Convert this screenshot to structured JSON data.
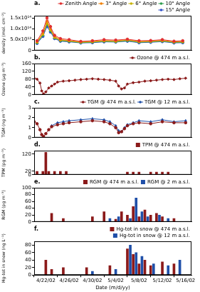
{
  "chart_data": [
    {
      "type": "line",
      "title": "a.",
      "y_label": "density (mol. cm⁻²)",
      "grid": false,
      "legend": "top-right",
      "tick_labels": "y",
      "xlim": [
        110,
        137
      ],
      "ylim": [
        0,
        160000000000000.0
      ],
      "yticks": [
        0,
        {
          "value": 50000000000000.0,
          "label": "5.0x10¹³"
        },
        {
          "value": 100000000000000.0,
          "label": "1.0x10¹⁴"
        },
        {
          "value": 150000000000000.0,
          "label": "1.5x10¹⁴"
        }
      ],
      "series": [
        {
          "name": "Zenith Angle",
          "color": "#e03030",
          "marker": "circle",
          "x": [
            110.5,
            111.5,
            112.2,
            112.8,
            113.5,
            114.5,
            116,
            118,
            120,
            122,
            124,
            126,
            128,
            130,
            132,
            134,
            135.5
          ],
          "values": [
            45000000000000.0,
            90000000000000.0,
            150000000000000.0,
            110000000000000.0,
            70000000000000.0,
            55000000000000.0,
            50000000000000.0,
            42000000000000.0,
            45000000000000.0,
            50000000000000.0,
            48000000000000.0,
            52000000000000.0,
            45000000000000.0,
            46000000000000.0,
            50000000000000.0,
            43000000000000.0,
            45000000000000.0
          ]
        },
        {
          "name": "3° Angle",
          "color": "#f08000",
          "marker": "triangle",
          "x": [
            110.5,
            111.5,
            112.2,
            112.8,
            113.5,
            114.5,
            116,
            118,
            120,
            122,
            124,
            126,
            128,
            130,
            132,
            134,
            135.5
          ],
          "values": [
            40000000000000.0,
            80000000000000.0,
            135000000000000.0,
            100000000000000.0,
            65000000000000.0,
            50000000000000.0,
            46000000000000.0,
            40000000000000.0,
            42000000000000.0,
            46000000000000.0,
            45000000000000.0,
            50000000000000.0,
            42000000000000.0,
            44000000000000.0,
            47000000000000.0,
            40000000000000.0,
            42000000000000.0
          ]
        },
        {
          "name": "6° Angle",
          "color": "#c8b400",
          "marker": "square",
          "x": [
            110.5,
            111.5,
            112.2,
            112.8,
            113.5,
            114.5,
            116,
            118,
            120,
            122,
            124,
            126,
            128,
            130,
            132,
            134,
            135.5
          ],
          "values": [
            38000000000000.0,
            75000000000000.0,
            125000000000000.0,
            95000000000000.0,
            60000000000000.0,
            48000000000000.0,
            44000000000000.0,
            38000000000000.0,
            40000000000000.0,
            44000000000000.0,
            42000000000000.0,
            48000000000000.0,
            40000000000000.0,
            42000000000000.0,
            45000000000000.0,
            39000000000000.0,
            40000000000000.0
          ]
        },
        {
          "name": "10° Angle",
          "color": "#2e9e4e",
          "marker": "diamond",
          "x": [
            110.5,
            111.5,
            112.2,
            112.8,
            113.5,
            114.5,
            116,
            118,
            120,
            122,
            124,
            126,
            128,
            130,
            132,
            134,
            135.5
          ],
          "values": [
            35000000000000.0,
            70000000000000.0,
            120000000000000.0,
            90000000000000.0,
            58000000000000.0,
            45000000000000.0,
            42000000000000.0,
            36000000000000.0,
            38000000000000.0,
            42000000000000.0,
            40000000000000.0,
            45000000000000.0,
            38000000000000.0,
            40000000000000.0,
            43000000000000.0,
            37000000000000.0,
            38000000000000.0
          ]
        },
        {
          "name": "15° Angle",
          "color": "#3050c8",
          "marker": "circle",
          "x": [
            110.5,
            111.5,
            112.2,
            112.8,
            113.5,
            114.5,
            116,
            118,
            120,
            122,
            124,
            126,
            128,
            130,
            132,
            134,
            135.5
          ],
          "values": [
            33000000000000.0,
            65000000000000.0,
            110000000000000.0,
            85000000000000.0,
            55000000000000.0,
            43000000000000.0,
            40000000000000.0,
            35000000000000.0,
            36000000000000.0,
            40000000000000.0,
            39000000000000.0,
            43000000000000.0,
            36000000000000.0,
            38000000000000.0,
            41000000000000.0,
            35000000000000.0,
            36000000000000.0
          ]
        }
      ]
    },
    {
      "type": "line",
      "title": "b.",
      "y_label": "Ozone (µg m⁻³)",
      "grid": false,
      "legend": "top-right",
      "tick_labels": "y",
      "xlim": [
        110,
        137
      ],
      "ylim": [
        0,
        160
      ],
      "yticks": [
        0,
        40,
        80,
        120,
        160
      ],
      "series": [
        {
          "name": "Ozone @ 474 m a.s.l.",
          "color": "#8b1a1a",
          "marker": "diamond",
          "x": [
            110,
            110.5,
            111,
            111.3,
            111.6,
            112,
            112.5,
            113,
            113.5,
            114,
            115,
            116,
            117,
            118,
            119,
            120,
            121,
            122,
            123,
            124,
            124.5,
            125,
            125.5,
            126,
            127,
            128,
            129,
            130,
            131,
            132,
            133,
            134,
            135,
            136
          ],
          "values": [
            85,
            80,
            60,
            20,
            5,
            15,
            35,
            45,
            55,
            65,
            70,
            72,
            75,
            78,
            80,
            82,
            80,
            78,
            75,
            70,
            45,
            30,
            35,
            55,
            62,
            65,
            70,
            72,
            75,
            78,
            80,
            78,
            82,
            85
          ]
        }
      ]
    },
    {
      "type": "line",
      "title": "c.",
      "y_label": "TGM (ng m⁻³)",
      "grid": false,
      "legend": "top-right",
      "tick_labels": "y",
      "xlim": [
        110,
        137
      ],
      "ylim": [
        0,
        3
      ],
      "yticks": [
        0,
        1,
        2,
        3
      ],
      "series": [
        {
          "name": "TGM @ 474 m a.s.l.",
          "color": "#8b1a1a",
          "marker": "circle",
          "x": [
            110,
            110.5,
            111,
            111.3,
            111.6,
            112,
            112.5,
            113,
            114,
            115,
            116,
            118,
            120,
            122,
            123,
            124,
            124.5,
            125,
            125.5,
            126,
            127,
            128,
            130,
            132,
            134,
            136
          ],
          "values": [
            1.6,
            1.4,
            0.8,
            0.3,
            0.1,
            0.4,
            0.8,
            1.1,
            1.3,
            1.4,
            1.5,
            1.6,
            1.7,
            1.6,
            1.4,
            1.0,
            0.5,
            0.6,
            0.9,
            1.2,
            1.4,
            1.5,
            1.4,
            1.6,
            1.5,
            1.5
          ]
        },
        {
          "name": "TGM @ 12 m a.s.l.",
          "color": "#1f4fa8",
          "marker": "triangle",
          "x": [
            113,
            114,
            115,
            116,
            118,
            120,
            122,
            123,
            124,
            124.5,
            125,
            125.5,
            126,
            127,
            128,
            130,
            132,
            134,
            136
          ],
          "values": [
            1.2,
            1.5,
            1.6,
            1.7,
            1.8,
            1.9,
            1.8,
            1.6,
            1.2,
            0.7,
            0.6,
            1.0,
            1.3,
            1.5,
            1.7,
            1.6,
            1.8,
            1.6,
            1.7
          ]
        }
      ]
    },
    {
      "type": "bar",
      "title": "d.",
      "y_label": "TPM (pg m⁻³)",
      "grid": false,
      "legend": "top-right",
      "tick_labels": "y",
      "xlim": [
        110,
        137
      ],
      "ylim": [
        0,
        140
      ],
      "yticks": [
        0,
        20,
        120
      ],
      "series": [
        {
          "name": "TPM @ 474 m a.s.l.",
          "color": "#8b1a1a",
          "x": [
            110.5,
            111.5,
            112,
            112.5,
            113.5,
            114.5,
            115.5,
            126,
            127,
            128,
            130,
            131,
            132,
            133
          ],
          "values": [
            20,
            20,
            130,
            20,
            20,
            20,
            20,
            15,
            15,
            15,
            15,
            15,
            15,
            15
          ]
        }
      ]
    },
    {
      "type": "bar",
      "title": "e.",
      "y_label": "RGM (pg m⁻³)",
      "grid": false,
      "legend": "top-right",
      "tick_labels": "y",
      "xlim": [
        110,
        137
      ],
      "ylim": [
        0,
        100
      ],
      "yticks": [
        0,
        20,
        40,
        60,
        80,
        100
      ],
      "series": [
        {
          "name": "RGM @ 474 m a.s.l.",
          "color": "#8b1a1a",
          "x": [
            113,
            115,
            120,
            122,
            124,
            125,
            126,
            127,
            128,
            129,
            130,
            131,
            132,
            134
          ],
          "values": [
            25,
            10,
            15,
            30,
            8,
            30,
            20,
            45,
            15,
            35,
            20,
            25,
            15,
            10
          ]
        },
        {
          "name": "RGM @ 2 m a.s.l.",
          "color": "#1f4fa8",
          "x": [
            123,
            124.5,
            126.5,
            127.5,
            128.5,
            129.5,
            131.5,
            133
          ],
          "values": [
            10,
            15,
            10,
            70,
            30,
            15,
            20,
            10
          ]
        }
      ]
    },
    {
      "type": "bar",
      "title": "f.",
      "y_label": "Hg-tot in snow (ng L⁻¹)",
      "x_label": "Date (m/d/yy)",
      "grid": false,
      "legend": "top-right",
      "xlim": [
        110,
        137
      ],
      "ylim": [
        0,
        90
      ],
      "yticks": [
        0,
        20,
        40,
        60,
        80
      ],
      "xticks": [
        {
          "value": 112,
          "label": "4/22/02"
        },
        {
          "value": 116,
          "label": "4/26/02"
        },
        {
          "value": 120,
          "label": "4/30/02"
        },
        {
          "value": 124,
          "label": "5/4/02"
        },
        {
          "value": 128,
          "label": "5/8/02"
        },
        {
          "value": 132,
          "label": "5/12/02"
        },
        {
          "value": 136,
          "label": "5/16/02"
        }
      ],
      "series": [
        {
          "name": "Hg-tot in snow @ 474 m a.s.l.",
          "color": "#8b1a1a",
          "x": [
            112,
            113,
            115,
            119,
            123,
            126,
            127,
            128,
            129,
            130,
            132,
            134
          ],
          "values": [
            40,
            15,
            20,
            20,
            25,
            70,
            55,
            30,
            40,
            25,
            35,
            30
          ]
        },
        {
          "name": "Hg-tot in snow @ 12 m a.s.l.",
          "color": "#1f4fa8",
          "x": [
            120,
            124,
            126.5,
            127.5,
            128.5,
            130.5,
            133,
            135
          ],
          "values": [
            10,
            15,
            80,
            60,
            50,
            30,
            25,
            40
          ]
        }
      ]
    }
  ]
}
